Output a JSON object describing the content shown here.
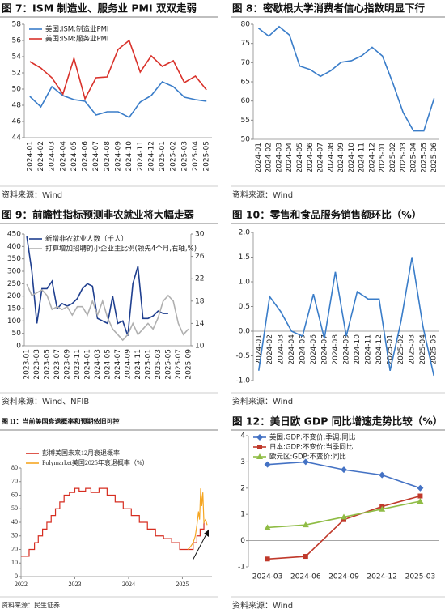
{
  "chart_data": [
    {
      "type": "line",
      "title": "图 7：ISM 制造业、服务业 PMI 双双走弱",
      "source": "资料来源：Wind",
      "legend": "upper left",
      "categories": [
        "2024-01",
        "2024-02",
        "2024-03",
        "2024-04",
        "2024-05",
        "2024-06",
        "2024-07",
        "2024-08",
        "2024-09",
        "2024-10",
        "2024-11",
        "2024-12",
        "2025-01",
        "2025-02",
        "2025-03",
        "2025-04",
        "2025-05"
      ],
      "ylim": [
        44,
        58
      ],
      "yticks": [
        44,
        46,
        48,
        50,
        52,
        54,
        56,
        58
      ],
      "series": [
        {
          "name": "美国:ISM:制造业PMI",
          "color": "#3a7dc9",
          "values": [
            49.1,
            47.8,
            50.3,
            49.2,
            48.7,
            48.5,
            46.8,
            47.2,
            47.2,
            46.5,
            48.4,
            49.2,
            50.9,
            50.3,
            49.0,
            48.7,
            48.5
          ]
        },
        {
          "name": "美国:ISM:服务业PMI",
          "color": "#d9322b",
          "values": [
            53.4,
            52.6,
            51.4,
            49.4,
            53.8,
            48.8,
            51.4,
            51.5,
            54.9,
            56.0,
            52.1,
            54.1,
            52.8,
            53.5,
            50.8,
            51.6,
            49.9
          ]
        }
      ]
    },
    {
      "type": "line",
      "title": "图 8：密歇根大学消费者信心指数明显下行",
      "source": "资料来源：Wind",
      "categories": [
        "2024-01",
        "2024-02",
        "2024-03",
        "2024-04",
        "2024-05",
        "2024-06",
        "2024-07",
        "2024-08",
        "2024-09",
        "2024-10",
        "2024-11",
        "2024-12",
        "2025-01",
        "2025-02",
        "2025-03",
        "2025-04",
        "2025-05",
        "2025-06"
      ],
      "ylim": [
        50,
        80
      ],
      "yticks": [
        50,
        55,
        60,
        65,
        70,
        75,
        80
      ],
      "series": [
        {
          "color": "#3a7dc9",
          "values": [
            79.0,
            76.9,
            79.4,
            77.2,
            69.1,
            68.2,
            66.4,
            67.9,
            70.1,
            70.5,
            71.8,
            74.0,
            71.7,
            64.7,
            57.0,
            52.2,
            52.2,
            60.7
          ]
        }
      ]
    },
    {
      "type": "line",
      "title": "图 9：前瞻性指标预测非农就业将大幅走弱",
      "source": "资料来源：Wind、NFIB",
      "legend": "upper left",
      "categories": [
        "2023-01",
        null,
        "2023-03",
        null,
        "2023-05",
        null,
        "2023-07",
        null,
        "2023-09",
        null,
        "2023-11",
        null,
        "2024-01",
        null,
        "2024-03",
        null,
        "2024-05",
        null,
        "2024-07",
        null,
        "2024-09",
        null,
        "2024-11",
        null,
        "2025-01",
        null,
        "2025-03",
        null,
        "2025-05",
        null,
        "2025-07",
        null,
        "2025-09"
      ],
      "ylim": [
        0,
        450
      ],
      "yticks": [
        0,
        50,
        100,
        150,
        200,
        250,
        300,
        350,
        400,
        450
      ],
      "y2lim": [
        10,
        30
      ],
      "y2ticks": [
        10,
        14,
        18,
        22,
        26,
        30
      ],
      "series": [
        {
          "name": "新增非农就业人数（千人）",
          "color": "#1f3f8f",
          "values": [
            440,
            300,
            90,
            230,
            230,
            260,
            150,
            170,
            160,
            170,
            190,
            230,
            250,
            240,
            110,
            100,
            90,
            200,
            90,
            100,
            40,
            250,
            320,
            110,
            110,
            120,
            140,
            130,
            130,
            null,
            null,
            null,
            null
          ]
        },
        {
          "name": "打算增加招聘的小企业主比例(领先4个月,右轴,%)",
          "color": "#b0b0b0",
          "axis": "y2",
          "values": [
            21,
            19,
            19.5,
            20,
            19,
            16.5,
            17,
            16.5,
            17,
            15.5,
            17,
            17,
            15.5,
            18,
            15.5,
            18,
            15,
            13,
            12,
            11,
            12,
            14,
            12,
            13,
            14,
            13,
            15,
            18,
            19,
            18,
            14,
            12,
            13
          ]
        }
      ]
    },
    {
      "type": "line",
      "title": "图 10：零售和食品服务销售额环比（%）",
      "source": "资料来源：Wind",
      "categories": [
        "2024-01",
        "2024-02",
        "2024-03",
        "2024-04",
        "2024-05",
        "2024-06",
        "2024-07",
        "2024-08",
        "2024-09",
        "2024-10",
        "2024-11",
        "2024-12",
        "2025-01",
        "2025-02",
        "2025-03",
        "2025-04",
        "2025-05"
      ],
      "ylim": [
        -1,
        2
      ],
      "yticks": [
        {
          "value": -1,
          "label": "-1.0"
        },
        -0.5,
        {
          "value": 0,
          "label": "0.0"
        },
        0.5,
        {
          "value": 1,
          "label": "1.0"
        },
        1.5,
        {
          "value": 2,
          "label": "2.0"
        }
      ],
      "series": [
        {
          "color": "#3a7dc9",
          "values": [
            -0.8,
            0.7,
            0.4,
            0.0,
            -0.1,
            0.75,
            -0.15,
            1.2,
            -0.1,
            0.8,
            0.65,
            0.65,
            -0.8,
            0.2,
            1.5,
            0.1,
            -0.9
          ]
        }
      ]
    },
    {
      "type": "line",
      "title": "图 11：当前美国衰退概率和预期依旧可控",
      "source": "资料来源：民生证券",
      "legend": "upper left",
      "xlim": [
        2022,
        2025.55
      ],
      "xticks": [
        2022,
        2023,
        2024,
        2025
      ],
      "ylim": [
        0,
        80
      ],
      "yticks": [
        0,
        10,
        20,
        30,
        40,
        50,
        60,
        70,
        80
      ],
      "series": [
        {
          "name": "彭博美国未来12月衰退概率",
          "color": "#d62d20",
          "step": true,
          "x": [
            2022.0,
            2022.15,
            2022.25,
            2022.32,
            2022.4,
            2022.48,
            2022.56,
            2022.64,
            2022.72,
            2022.8,
            2022.9,
            2023.0,
            2023.08,
            2023.2,
            2023.3,
            2023.45,
            2023.6,
            2023.75,
            2023.9,
            2024.05,
            2024.2,
            2024.35,
            2024.5,
            2024.65,
            2024.8,
            2024.95,
            2025.2,
            2025.27,
            2025.33,
            2025.4
          ],
          "values": [
            15,
            20,
            25,
            30,
            35,
            40,
            45,
            50,
            55,
            60,
            62,
            65,
            63,
            65,
            62,
            65,
            60,
            55,
            50,
            45,
            40,
            35,
            30,
            28,
            25,
            20,
            25,
            30,
            35,
            40
          ]
        },
        {
          "name": "Polymarket美国2025年衰退概率（%）",
          "color": "#f5a623",
          "x": [
            2025.1,
            2025.15,
            2025.2,
            2025.24,
            2025.27,
            2025.3,
            2025.32,
            2025.34,
            2025.36,
            2025.38,
            2025.4,
            2025.43,
            2025.46
          ],
          "values": [
            20,
            22,
            25,
            30,
            38,
            48,
            42,
            65,
            52,
            62,
            40,
            42,
            38
          ]
        }
      ]
    },
    {
      "type": "line",
      "title": "图 12：美日欧 GDP 同比增速走势比较（%）",
      "source": "资料来源：Wind",
      "legend": "upper left",
      "categories": [
        "2024-03",
        "2024-06",
        "2024-09",
        "2024-12",
        "2025-03"
      ],
      "ylim": [
        -1,
        4
      ],
      "yticks": [
        -1,
        0,
        1,
        2,
        3,
        4
      ],
      "series": [
        {
          "name": "美国:GDP:不变价:季调:同比",
          "color": "#4472c4",
          "marker": "diamond",
          "values": [
            2.9,
            3.0,
            2.7,
            2.5,
            2.0
          ]
        },
        {
          "name": "日本:GDP:不变价:当季同比",
          "color": "#c0392b",
          "marker": "square",
          "values": [
            -0.7,
            -0.6,
            0.8,
            1.3,
            1.7
          ]
        },
        {
          "name": "欧元区:GDP:不变价:同比",
          "color": "#8fbc45",
          "marker": "triangle",
          "values": [
            0.5,
            0.6,
            0.9,
            1.2,
            1.5
          ]
        }
      ]
    }
  ]
}
